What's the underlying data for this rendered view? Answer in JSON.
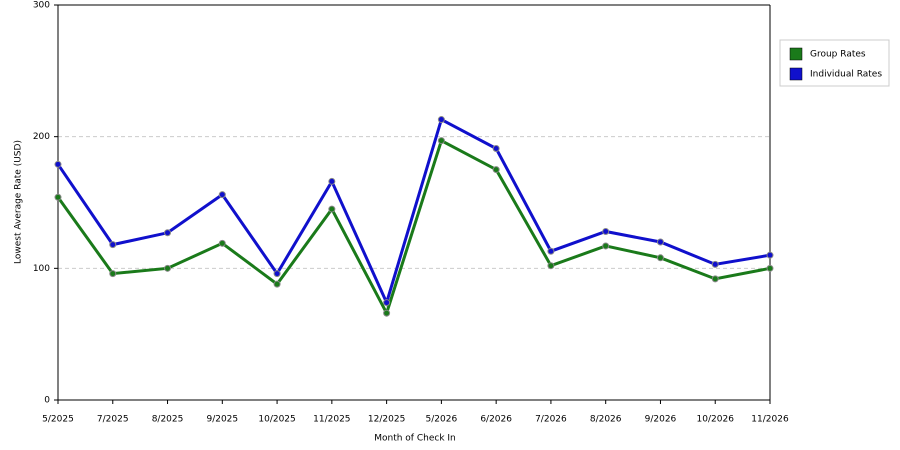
{
  "chart_data": {
    "type": "line",
    "x_label": "Month of Check In",
    "y_label": "Lowest Average Rate (USD)",
    "categories": [
      "5/2025",
      "7/2025",
      "8/2025",
      "9/2025",
      "10/2025",
      "11/2025",
      "12/2025",
      "5/2026",
      "6/2026",
      "7/2026",
      "8/2026",
      "9/2026",
      "10/2026",
      "11/2026"
    ],
    "series": [
      {
        "name": "Group Rates",
        "color": "#1a7a1a",
        "values": [
          154,
          96,
          100,
          119,
          88,
          145,
          66,
          197,
          175,
          102,
          117,
          108,
          92,
          100
        ]
      },
      {
        "name": "Individual Rates",
        "color": "#1010cc",
        "values": [
          179,
          118,
          127,
          156,
          96,
          166,
          74,
          213,
          191,
          113,
          128,
          120,
          103,
          110
        ]
      }
    ],
    "ylim": [
      0,
      300
    ],
    "yticks": [
      0,
      100,
      200,
      300
    ],
    "grid": true,
    "legend": "right"
  }
}
